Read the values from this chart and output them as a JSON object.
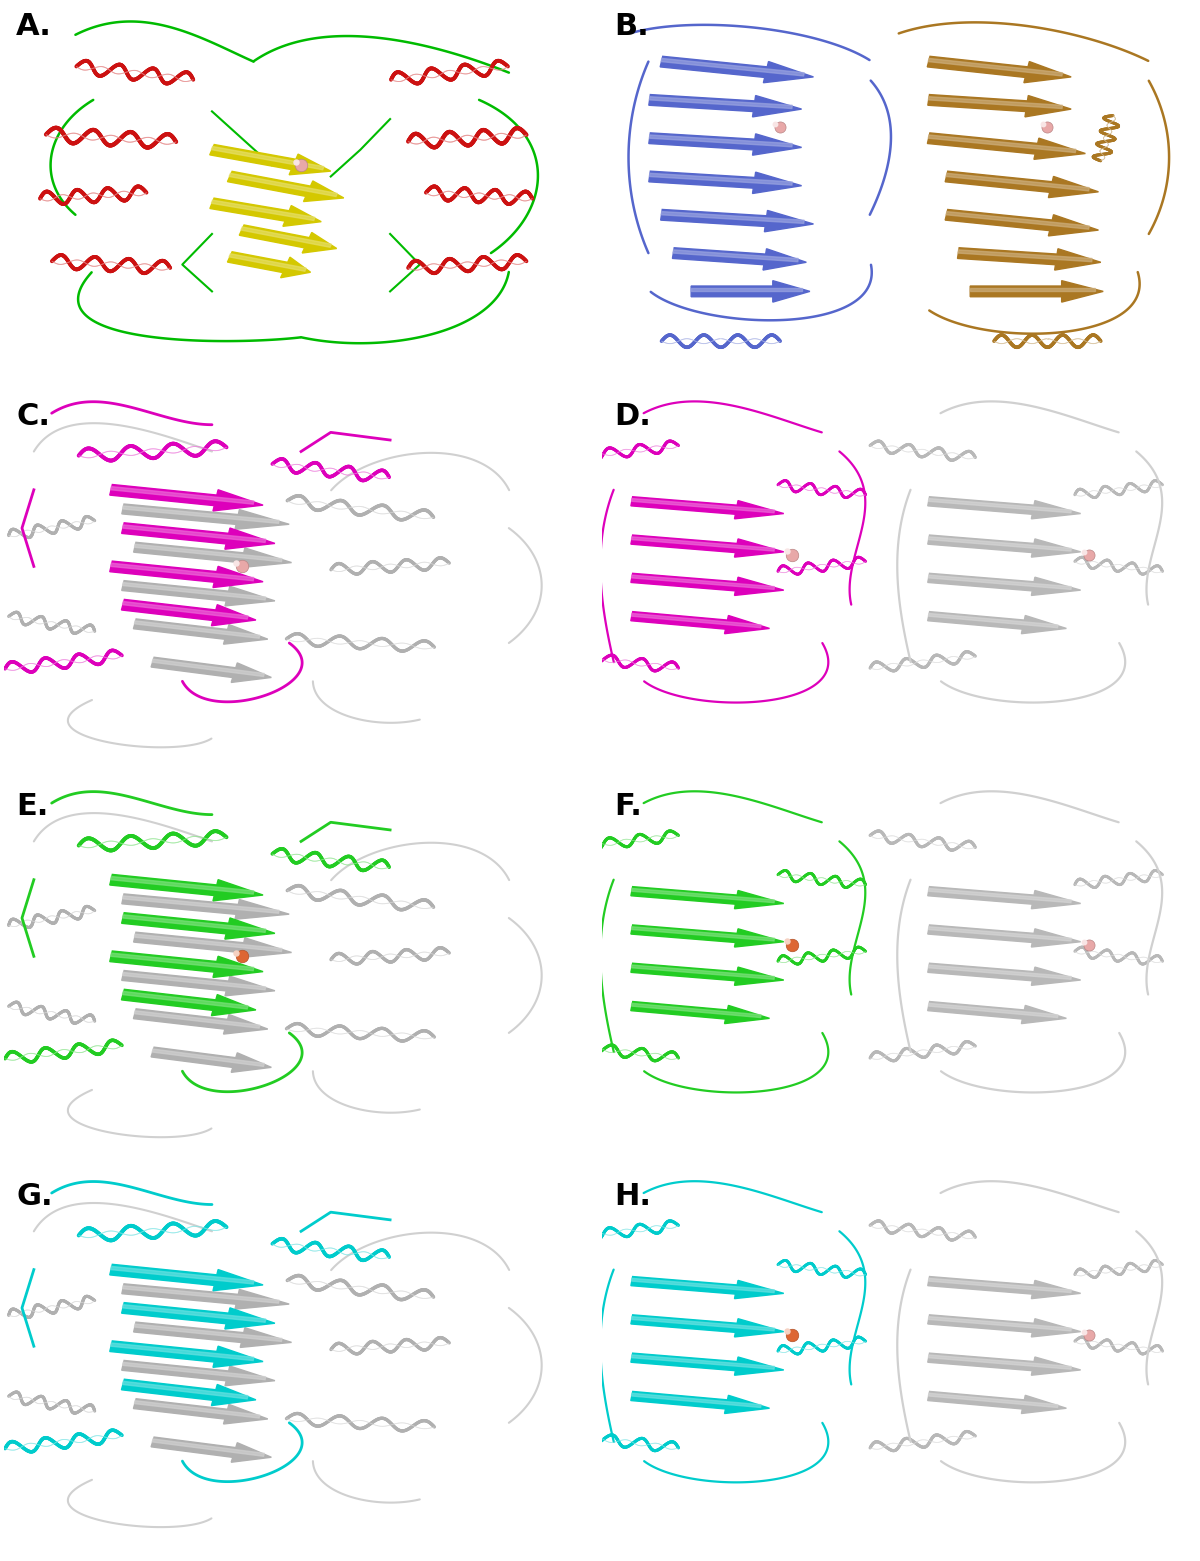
{
  "figure_width": 12.0,
  "figure_height": 15.61,
  "dpi": 100,
  "background_color": "#ffffff",
  "panels": [
    {
      "label": "A.",
      "row": 0,
      "col": 0
    },
    {
      "label": "B.",
      "row": 0,
      "col": 1
    },
    {
      "label": "C.",
      "row": 1,
      "col": 0
    },
    {
      "label": "D.",
      "row": 1,
      "col": 1
    },
    {
      "label": "E.",
      "row": 2,
      "col": 0
    },
    {
      "label": "F.",
      "row": 2,
      "col": 1
    },
    {
      "label": "G.",
      "row": 3,
      "col": 0
    },
    {
      "label": "H.",
      "row": 3,
      "col": 1
    }
  ],
  "label_fontsize": 22,
  "label_fontweight": "bold",
  "label_color": "#000000",
  "grid_rows": 4,
  "grid_cols": 2,
  "panel_colors": {
    "A_helix": "#cc1111",
    "A_sheet": "#d4c800",
    "A_loop": "#00bb00",
    "B_chain1": "#5566cc",
    "B_chain2": "#aa7722",
    "CD_color": "#dd00bb",
    "CD_gray": "#aaaaaa",
    "EF_color": "#22cc22",
    "EF_gray": "#aaaaaa",
    "GH_color": "#00cccc",
    "GH_gray": "#aaaaaa",
    "metal_pink": "#e8a8a8",
    "metal_orange": "#dd6633"
  }
}
